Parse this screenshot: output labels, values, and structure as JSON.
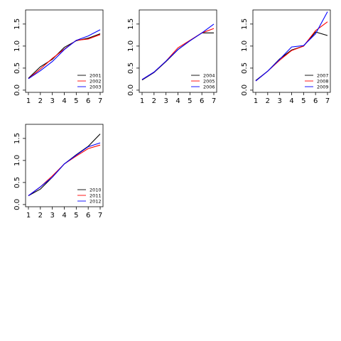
{
  "chart_data": [
    {
      "type": "line",
      "x": [
        1,
        2,
        3,
        4,
        5,
        6,
        7
      ],
      "xlim": [
        1,
        7
      ],
      "ylim": [
        0,
        1.7
      ],
      "x_ticks": [
        "1",
        "2",
        "3",
        "4",
        "5",
        "6",
        "7"
      ],
      "y_ticks": [
        "0.0",
        "0.5",
        "1.0",
        "1.5"
      ],
      "legend_position": "bottom-right",
      "series": [
        {
          "name": "2001",
          "color": "#000000",
          "values": [
            0.27,
            0.53,
            0.7,
            0.97,
            1.12,
            1.18,
            1.28
          ]
        },
        {
          "name": "2002",
          "color": "#ff0000",
          "values": [
            0.26,
            0.48,
            0.72,
            0.93,
            1.13,
            1.16,
            1.26
          ]
        },
        {
          "name": "2003",
          "color": "#0000ff",
          "values": [
            0.26,
            0.44,
            0.65,
            0.92,
            1.13,
            1.23,
            1.37
          ]
        }
      ]
    },
    {
      "type": "line",
      "x": [
        1,
        2,
        3,
        4,
        5,
        6,
        7
      ],
      "xlim": [
        1,
        7
      ],
      "ylim": [
        0,
        1.7
      ],
      "x_ticks": [
        "1",
        "2",
        "3",
        "4",
        "5",
        "6",
        "7"
      ],
      "y_ticks": [
        "0.0",
        "0.5",
        "1.0",
        "1.5"
      ],
      "legend_position": "bottom-right",
      "series": [
        {
          "name": "2004",
          "color": "#000000",
          "values": [
            0.23,
            0.4,
            0.65,
            0.92,
            1.12,
            1.3,
            1.3
          ]
        },
        {
          "name": "2005",
          "color": "#ff0000",
          "values": [
            0.24,
            0.41,
            0.66,
            0.96,
            1.13,
            1.3,
            1.4
          ]
        },
        {
          "name": "2006",
          "color": "#0000ff",
          "values": [
            0.24,
            0.41,
            0.66,
            0.92,
            1.12,
            1.3,
            1.5
          ]
        }
      ]
    },
    {
      "type": "line",
      "x": [
        1,
        2,
        3,
        4,
        5,
        6,
        7
      ],
      "xlim": [
        1,
        7
      ],
      "ylim": [
        0,
        1.7
      ],
      "x_ticks": [
        "1",
        "2",
        "3",
        "4",
        "5",
        "6",
        "7"
      ],
      "y_ticks": [
        "0.0",
        "0.5",
        "1.0",
        "1.5"
      ],
      "legend_position": "bottom-right",
      "series": [
        {
          "name": "2007",
          "color": "#000000",
          "values": [
            0.22,
            0.43,
            0.71,
            0.91,
            1.0,
            1.32,
            1.24
          ]
        },
        {
          "name": "2008",
          "color": "#ff0000",
          "values": [
            0.21,
            0.43,
            0.68,
            0.9,
            1.0,
            1.35,
            1.55
          ]
        },
        {
          "name": "2009",
          "color": "#0000ff",
          "values": [
            0.21,
            0.43,
            0.7,
            0.98,
            1.01,
            1.28,
            1.78
          ]
        }
      ]
    },
    {
      "type": "line",
      "x": [
        1,
        2,
        3,
        4,
        5,
        6,
        7
      ],
      "xlim": [
        1,
        7
      ],
      "ylim": [
        0,
        1.7
      ],
      "x_ticks": [
        "1",
        "2",
        "3",
        "4",
        "5",
        "6",
        "7"
      ],
      "y_ticks": [
        "0.0",
        "0.5",
        "1.0",
        "1.5"
      ],
      "legend_position": "bottom-right",
      "series": [
        {
          "name": "2010",
          "color": "#000000",
          "values": [
            0.2,
            0.35,
            0.62,
            0.92,
            1.13,
            1.32,
            1.6
          ]
        },
        {
          "name": "2011",
          "color": "#ff0000",
          "values": [
            0.2,
            0.4,
            0.65,
            0.92,
            1.1,
            1.27,
            1.35
          ]
        },
        {
          "name": "2012",
          "color": "#0000ff",
          "values": [
            0.2,
            0.4,
            0.62,
            0.92,
            1.12,
            1.31,
            1.4
          ]
        }
      ]
    }
  ]
}
